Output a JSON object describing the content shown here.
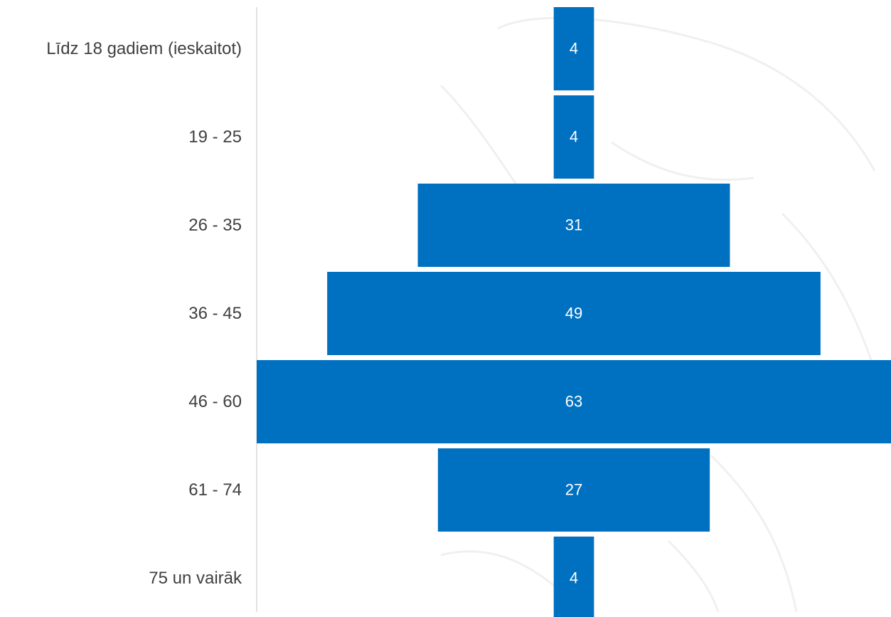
{
  "chart_data": {
    "type": "funnel",
    "categories": [
      "Līdz 18 gadiem (ieskaitot)",
      "19 - 25",
      "26 - 35",
      "36 - 45",
      "46 - 60",
      "61 - 74",
      "75 un vairāk"
    ],
    "values": [
      4,
      4,
      31,
      49,
      63,
      27,
      4
    ],
    "color": "#0070c0"
  }
}
